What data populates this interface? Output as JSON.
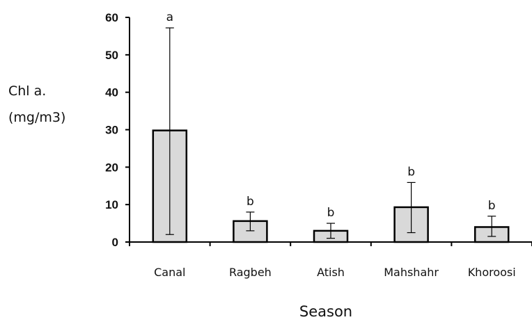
{
  "chart_data": {
    "type": "bar",
    "title": "",
    "ylabel_lines": [
      "Chl a.",
      "(mg/m3)"
    ],
    "xlabel": "Season",
    "ylim": [
      0,
      60
    ],
    "yticks": [
      0,
      10,
      20,
      30,
      40,
      50,
      60
    ],
    "categories": [
      "Canal",
      "Ragbeh",
      "Atish",
      "Mahshahr",
      "Khoroosi"
    ],
    "values": [
      29.8,
      5.6,
      3.0,
      9.3,
      4.0
    ],
    "error_low": [
      2.0,
      3.0,
      1.0,
      2.5,
      1.5
    ],
    "error_high": [
      57.2,
      8.0,
      5.0,
      15.9,
      6.9
    ],
    "significance_letters": [
      "a",
      "b",
      "b",
      "b",
      "b"
    ],
    "bar_fill": "#d9d9d9",
    "bar_stroke": "#000000",
    "grid": false,
    "legend": "none"
  }
}
